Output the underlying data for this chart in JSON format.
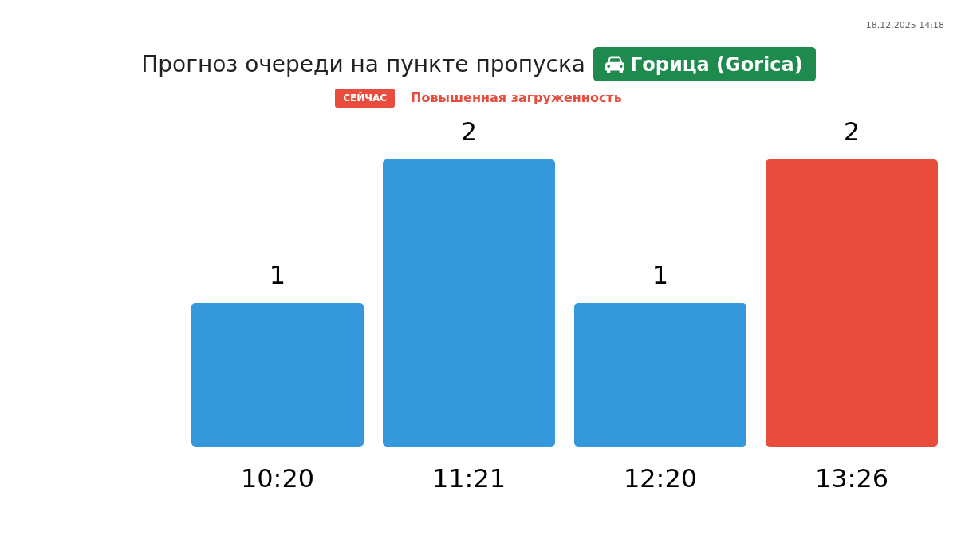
{
  "chart_data": {
    "type": "bar",
    "title": "Прогноз очереди на пункте пропуска",
    "subtitle": "Горица (Gorica)",
    "annotations": [
      "СЕЙЧАС",
      "Повышенная загруженность",
      "18.12.2025 14:18"
    ],
    "categories": [
      "10:20",
      "11:21",
      "12:20",
      "13:26"
    ],
    "values": [
      1,
      2,
      1,
      2
    ],
    "colors": [
      "#3498db",
      "#3498db",
      "#3498db",
      "#e74c3c"
    ],
    "data_labels": true
  }
}
